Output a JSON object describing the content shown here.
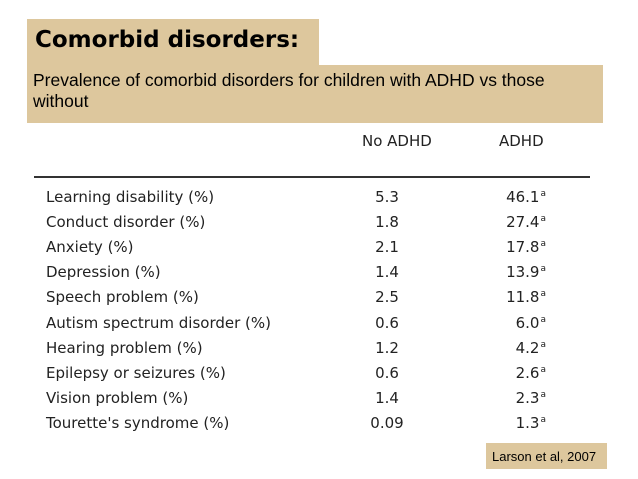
{
  "slide": {
    "title": "Comorbid disorders:",
    "subtitle": "Prevalence of comorbid disorders for children with ADHD vs those without",
    "citation": "Larson et al, 2007",
    "accent_color": "#ddc79d"
  },
  "table": {
    "headers": {
      "col1": "No ADHD",
      "col2": "ADHD"
    },
    "rows": [
      {
        "label": "Learning disability (%)",
        "no_adhd": "5.3",
        "adhd": "46.1",
        "mark": "a"
      },
      {
        "label": "Conduct disorder (%)",
        "no_adhd": "1.8",
        "adhd": "27.4",
        "mark": "a"
      },
      {
        "label": "Anxiety (%)",
        "no_adhd": "2.1",
        "adhd": "17.8",
        "mark": "a"
      },
      {
        "label": "Depression (%)",
        "no_adhd": "1.4",
        "adhd": "13.9",
        "mark": "a"
      },
      {
        "label": "Speech problem (%)",
        "no_adhd": "2.5",
        "adhd": "11.8",
        "mark": "a"
      },
      {
        "label": "Autism spectrum disorder (%)",
        "no_adhd": "0.6",
        "adhd": "6.0",
        "mark": "a"
      },
      {
        "label": "Hearing problem (%)",
        "no_adhd": "1.2",
        "adhd": "4.2",
        "mark": "a"
      },
      {
        "label": "Epilepsy or seizures (%)",
        "no_adhd": "0.6",
        "adhd": "2.6",
        "mark": "a"
      },
      {
        "label": "Vision problem (%)",
        "no_adhd": "1.4",
        "adhd": "2.3",
        "mark": "a"
      },
      {
        "label": "Tourette's syndrome (%)",
        "no_adhd": "0.09",
        "adhd": "1.3",
        "mark": "a"
      }
    ]
  }
}
